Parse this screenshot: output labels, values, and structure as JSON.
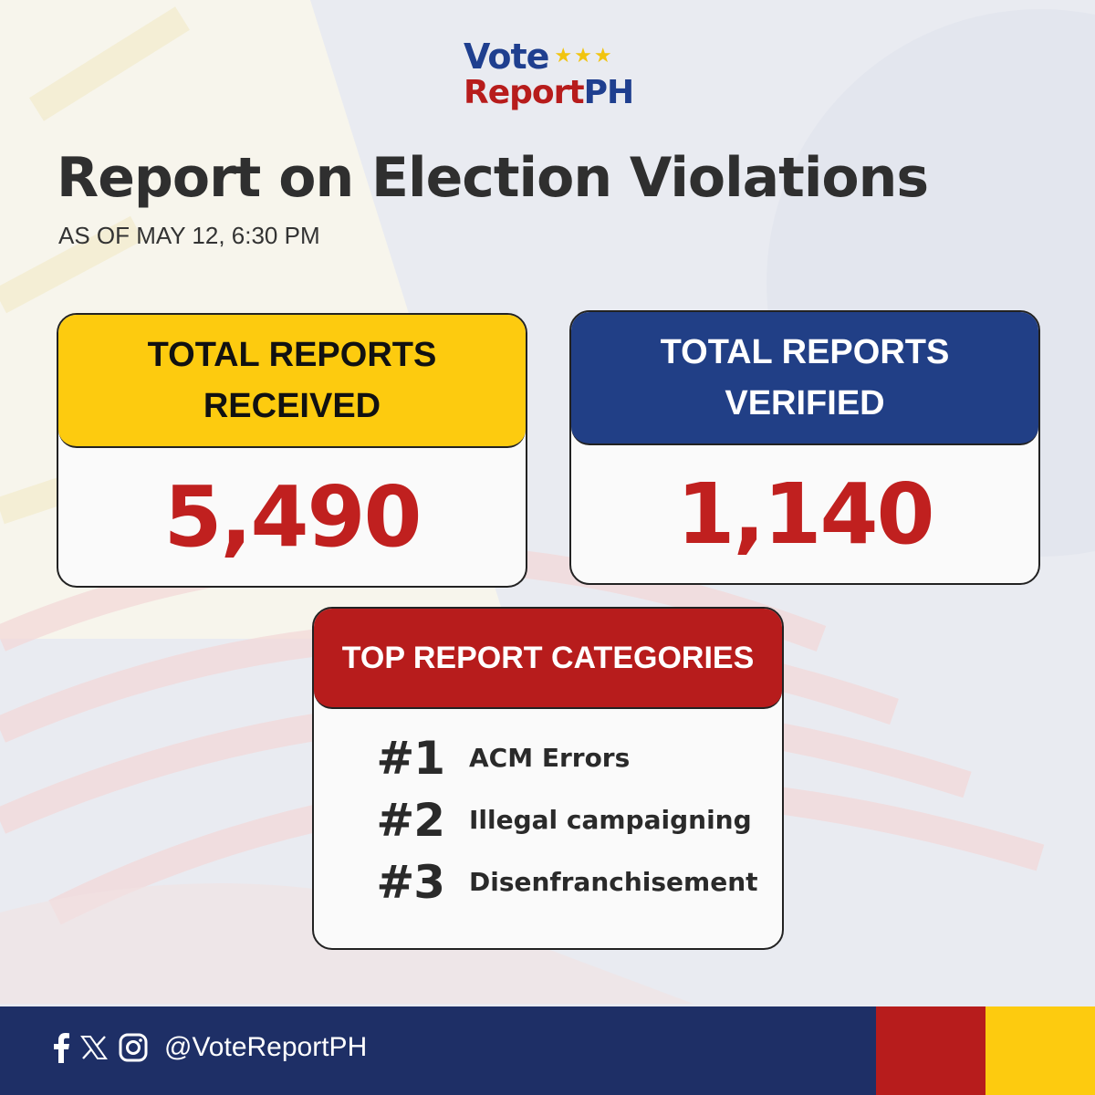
{
  "logo": {
    "vote": "Vote",
    "stars": "★★★",
    "report": "Report",
    "ph": "PH"
  },
  "title": "Report on Election Violations",
  "subtitle": "AS OF MAY 12, 6:30 PM",
  "cards": {
    "received": {
      "label_line1": "TOTAL REPORTS",
      "label_line2": "RECEIVED",
      "value": "5,490"
    },
    "verified": {
      "label_line1": "TOTAL REPORTS",
      "label_line2": "VERIFIED",
      "value": "1,140"
    }
  },
  "top_categories": {
    "header": "TOP REPORT CATEGORIES",
    "items": [
      {
        "rank": "#1",
        "label": "ACM Errors"
      },
      {
        "rank": "#2",
        "label": "Illegal campaigning"
      },
      {
        "rank": "#3",
        "label": "Disenfranchisement"
      }
    ]
  },
  "footer": {
    "handle": "@VoteReportPH",
    "icons": [
      "facebook-icon",
      "x-icon",
      "instagram-icon"
    ]
  },
  "colors": {
    "yellow": "#fdcb0f",
    "blue": "#213f86",
    "red": "#b71c1c",
    "value_red": "#c0201f",
    "footer_blue": "#1e2f66"
  }
}
